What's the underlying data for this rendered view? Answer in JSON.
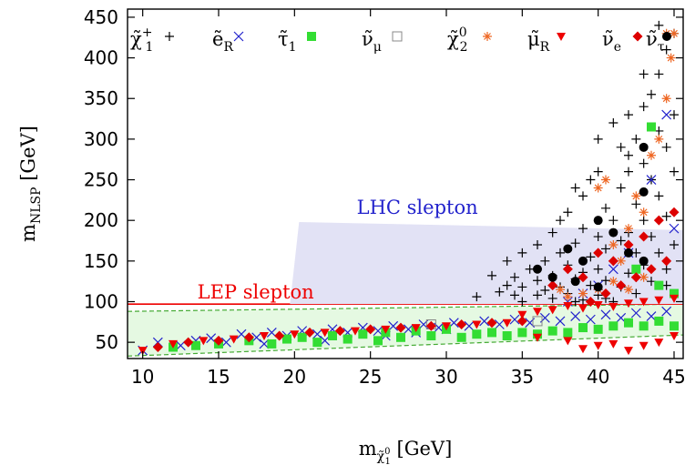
{
  "chart_data": {
    "type": "scatter",
    "xlabel": {
      "main": "m",
      "sub": "χ̃",
      "subsub": "1",
      "subsup": "0",
      "unit": " [GeV]"
    },
    "ylabel": {
      "main": "m",
      "sub": "NLSP",
      "unit": " [GeV]"
    },
    "xlim": [
      9,
      45.6
    ],
    "ylim": [
      30,
      460
    ],
    "xticks": [
      10,
      15,
      20,
      25,
      30,
      35,
      40,
      45
    ],
    "yticks": [
      50,
      100,
      150,
      200,
      250,
      300,
      350,
      400,
      450
    ],
    "legend": {
      "position": "top",
      "entries": [
        {
          "base": "χ̃",
          "sup": "+",
          "sub": "1",
          "marker": "plus",
          "color": "#000000"
        },
        {
          "base": "ẽ",
          "sup": "",
          "sub": "R",
          "marker": "cross",
          "color": "#2222cc"
        },
        {
          "base": "τ̃",
          "sup": "",
          "sub": "1",
          "marker": "square",
          "color": "#33dd33"
        },
        {
          "base": "ν̃",
          "sup": "",
          "sub": "μ",
          "marker": "opensquare",
          "color": "#888888"
        },
        {
          "base": "χ̃",
          "sup": "0",
          "sub": "2",
          "marker": "star",
          "color": "#ee6622"
        },
        {
          "base": "μ̃",
          "sup": "",
          "sub": "R",
          "marker": "triangle",
          "color": "#ee0000"
        },
        {
          "base": "ν̃",
          "sup": "",
          "sub": "e",
          "marker": "diamond",
          "color": "#dd0000"
        },
        {
          "base": "ν̃",
          "sup": "",
          "sub": "τ",
          "marker": "circle",
          "color": "#000000"
        }
      ]
    },
    "regions": [
      {
        "label": "LEP slepton",
        "color": "#ee0000",
        "label_at": [
          13.6,
          104
        ],
        "line_y": 97,
        "line_x": [
          9,
          45.6
        ]
      },
      {
        "label": "LHC slepton",
        "color": "#2222cc",
        "label_at": [
          24.1,
          208
        ],
        "polygon": [
          [
            19.7,
            97
          ],
          [
            20.3,
            198
          ],
          [
            45.6,
            188
          ],
          [
            45.6,
            97
          ]
        ],
        "fill": "#e2e2f5"
      }
    ],
    "band": {
      "fill": "#e5f9e2",
      "upper": [
        [
          9,
          88
        ],
        [
          45.6,
          97
        ]
      ],
      "lower": [
        [
          9,
          33
        ],
        [
          45.6,
          59
        ]
      ],
      "edge_color": "#44aa33"
    },
    "series": [
      {
        "marker": "plus",
        "color": "#000000",
        "points": [
          [
            32,
            106
          ],
          [
            33.5,
            112
          ],
          [
            34,
            120
          ],
          [
            34.5,
            130
          ],
          [
            35,
            100
          ],
          [
            35,
            118
          ],
          [
            35.5,
            140
          ],
          [
            36,
            108
          ],
          [
            36,
            126
          ],
          [
            36.5,
            150
          ],
          [
            37,
            104
          ],
          [
            37,
            132
          ],
          [
            37.5,
            118
          ],
          [
            37.5,
            160
          ],
          [
            38,
            110
          ],
          [
            38,
            145
          ],
          [
            38.5,
            128
          ],
          [
            38.5,
            172
          ],
          [
            39,
            102
          ],
          [
            39,
            136
          ],
          [
            39,
            190
          ],
          [
            39.5,
            120
          ],
          [
            39.5,
            155
          ],
          [
            40,
            108
          ],
          [
            40,
            140
          ],
          [
            40,
            180
          ],
          [
            40.5,
            126
          ],
          [
            40.5,
            165
          ],
          [
            40.5,
            215
          ],
          [
            41,
            100
          ],
          [
            41,
            150
          ],
          [
            41,
            200
          ],
          [
            41.5,
            118
          ],
          [
            41.5,
            175
          ],
          [
            41.5,
            240
          ],
          [
            42,
            135
          ],
          [
            42,
            185
          ],
          [
            42,
            260
          ],
          [
            42.5,
            110
          ],
          [
            42.5,
            160
          ],
          [
            42.5,
            220
          ],
          [
            42.5,
            300
          ],
          [
            43,
            145
          ],
          [
            43,
            200
          ],
          [
            43,
            270
          ],
          [
            43,
            340
          ],
          [
            43.5,
            125
          ],
          [
            43.5,
            180
          ],
          [
            43.5,
            250
          ],
          [
            43.5,
            355
          ],
          [
            44,
            160
          ],
          [
            44,
            230
          ],
          [
            44,
            310
          ],
          [
            44,
            380
          ],
          [
            44.5,
            140
          ],
          [
            44.5,
            205
          ],
          [
            44.5,
            290
          ],
          [
            44.5,
            410
          ],
          [
            45,
            170
          ],
          [
            45,
            260
          ],
          [
            45,
            330
          ],
          [
            45,
            430
          ],
          [
            41,
            320
          ],
          [
            42,
            280
          ],
          [
            40,
            260
          ],
          [
            39,
            230
          ],
          [
            38,
            210
          ],
          [
            37,
            185
          ],
          [
            36,
            170
          ],
          [
            35,
            160
          ],
          [
            34,
            150
          ],
          [
            33,
            132
          ],
          [
            34.5,
            108
          ],
          [
            36.5,
            114
          ],
          [
            38.5,
            100
          ],
          [
            40.5,
            104
          ],
          [
            42.5,
            130
          ],
          [
            44.5,
            120
          ],
          [
            41.5,
            290
          ],
          [
            42,
            330
          ],
          [
            43,
            380
          ],
          [
            44,
            440
          ],
          [
            39.5,
            250
          ],
          [
            40,
            300
          ],
          [
            38.5,
            240
          ],
          [
            37.5,
            200
          ]
        ]
      },
      {
        "marker": "cross",
        "color": "#2222cc",
        "points": [
          [
            10,
            40
          ],
          [
            11,
            50
          ],
          [
            12.5,
            46
          ],
          [
            13.5,
            52
          ],
          [
            14.5,
            55
          ],
          [
            15.5,
            50
          ],
          [
            16.5,
            60
          ],
          [
            17.5,
            56
          ],
          [
            18.5,
            62
          ],
          [
            19.5,
            58
          ],
          [
            20.5,
            64
          ],
          [
            21.5,
            60
          ],
          [
            22.5,
            66
          ],
          [
            23.5,
            62
          ],
          [
            24.5,
            68
          ],
          [
            25.5,
            64
          ],
          [
            26.5,
            70
          ],
          [
            27.5,
            66
          ],
          [
            28.5,
            72
          ],
          [
            29.5,
            68
          ],
          [
            30.5,
            74
          ],
          [
            31.5,
            70
          ],
          [
            32.5,
            76
          ],
          [
            33.5,
            72
          ],
          [
            34.5,
            78
          ],
          [
            35.5,
            74
          ],
          [
            36.5,
            80
          ],
          [
            37.5,
            76
          ],
          [
            38.5,
            82
          ],
          [
            39.5,
            78
          ],
          [
            40.5,
            84
          ],
          [
            41.5,
            80
          ],
          [
            42.5,
            86
          ],
          [
            43.5,
            82
          ],
          [
            44.5,
            88
          ],
          [
            45,
            190
          ],
          [
            44.5,
            330
          ],
          [
            43.5,
            250
          ],
          [
            42,
            160
          ],
          [
            41,
            140
          ],
          [
            40,
            120
          ],
          [
            39,
            110
          ],
          [
            38,
            100
          ],
          [
            26,
            58
          ],
          [
            28,
            62
          ],
          [
            30,
            66
          ],
          [
            22,
            52
          ],
          [
            18,
            48
          ]
        ]
      },
      {
        "marker": "square",
        "color": "#33dd33",
        "points": [
          [
            12,
            44
          ],
          [
            13.5,
            46
          ],
          [
            15,
            48
          ],
          [
            17,
            52
          ],
          [
            18.5,
            48
          ],
          [
            19.5,
            54
          ],
          [
            20.5,
            56
          ],
          [
            21.5,
            50
          ],
          [
            22.5,
            58
          ],
          [
            23.5,
            54
          ],
          [
            24.5,
            60
          ],
          [
            25.5,
            52
          ],
          [
            26,
            62
          ],
          [
            27,
            56
          ],
          [
            28,
            64
          ],
          [
            29,
            58
          ],
          [
            30,
            66
          ],
          [
            31,
            56
          ],
          [
            32,
            60
          ],
          [
            33,
            62
          ],
          [
            34,
            58
          ],
          [
            35,
            62
          ],
          [
            36,
            60
          ],
          [
            37,
            64
          ],
          [
            38,
            62
          ],
          [
            39,
            68
          ],
          [
            40,
            66
          ],
          [
            41,
            70
          ],
          [
            42,
            74
          ],
          [
            43,
            70
          ],
          [
            44,
            76
          ],
          [
            45,
            70
          ],
          [
            42.5,
            140
          ],
          [
            44,
            120
          ],
          [
            45,
            110
          ],
          [
            43.5,
            315
          ]
        ]
      },
      {
        "marker": "opensquare",
        "color": "#888888",
        "points": [
          [
            29,
            72
          ],
          [
            36,
            76
          ]
        ]
      },
      {
        "marker": "star",
        "color": "#ee6622",
        "points": [
          [
            40,
            240
          ],
          [
            40.5,
            250
          ],
          [
            41,
            170
          ],
          [
            41.5,
            150
          ],
          [
            42,
            190
          ],
          [
            42.5,
            230
          ],
          [
            43,
            210
          ],
          [
            43.5,
            280
          ],
          [
            44,
            300
          ],
          [
            44.5,
            350
          ],
          [
            44.8,
            400
          ],
          [
            45,
            430
          ],
          [
            44.5,
            430
          ],
          [
            43,
            130
          ],
          [
            42,
            115
          ],
          [
            41,
            125
          ],
          [
            40,
            115
          ],
          [
            39,
            110
          ],
          [
            38,
            106
          ],
          [
            37.5,
            115
          ]
        ]
      },
      {
        "marker": "triangle",
        "color": "#ee0000",
        "points": [
          [
            10,
            40
          ],
          [
            12,
            48
          ],
          [
            14,
            52
          ],
          [
            16,
            54
          ],
          [
            18,
            58
          ],
          [
            20,
            60
          ],
          [
            22,
            62
          ],
          [
            24,
            64
          ],
          [
            26,
            66
          ],
          [
            28,
            68
          ],
          [
            30,
            70
          ],
          [
            32,
            72
          ],
          [
            34,
            74
          ],
          [
            36,
            56
          ],
          [
            38,
            52
          ],
          [
            39,
            42
          ],
          [
            40,
            46
          ],
          [
            41,
            48
          ],
          [
            42,
            40
          ],
          [
            43,
            46
          ],
          [
            44,
            50
          ],
          [
            45,
            58
          ],
          [
            37,
            90
          ],
          [
            38,
            95
          ],
          [
            39,
            92
          ],
          [
            40,
            96
          ],
          [
            41,
            94
          ],
          [
            42,
            98
          ],
          [
            43,
            100
          ],
          [
            44,
            102
          ],
          [
            45,
            104
          ],
          [
            36,
            88
          ],
          [
            35,
            84
          ]
        ]
      },
      {
        "marker": "diamond",
        "color": "#dd0000",
        "points": [
          [
            11,
            44
          ],
          [
            13,
            50
          ],
          [
            15,
            52
          ],
          [
            17,
            56
          ],
          [
            19,
            58
          ],
          [
            21,
            62
          ],
          [
            23,
            64
          ],
          [
            25,
            66
          ],
          [
            27,
            68
          ],
          [
            29,
            70
          ],
          [
            31,
            72
          ],
          [
            33,
            74
          ],
          [
            35,
            76
          ],
          [
            37,
            120
          ],
          [
            38,
            140
          ],
          [
            39,
            130
          ],
          [
            40,
            160
          ],
          [
            41,
            150
          ],
          [
            42,
            170
          ],
          [
            43,
            180
          ],
          [
            44,
            200
          ],
          [
            45,
            210
          ],
          [
            40.5,
            110
          ],
          [
            41.5,
            120
          ],
          [
            42.5,
            130
          ],
          [
            43.5,
            140
          ],
          [
            44.5,
            150
          ],
          [
            39.5,
            100
          ]
        ]
      },
      {
        "marker": "circle",
        "color": "#000000",
        "points": [
          [
            43,
            290
          ],
          [
            43,
            235
          ],
          [
            40,
            200
          ],
          [
            41,
            185
          ],
          [
            42,
            160
          ],
          [
            43,
            150
          ],
          [
            38,
            165
          ],
          [
            39,
            150
          ],
          [
            36,
            140
          ],
          [
            37,
            130
          ],
          [
            38.5,
            125
          ],
          [
            40,
            118
          ]
        ]
      }
    ]
  }
}
